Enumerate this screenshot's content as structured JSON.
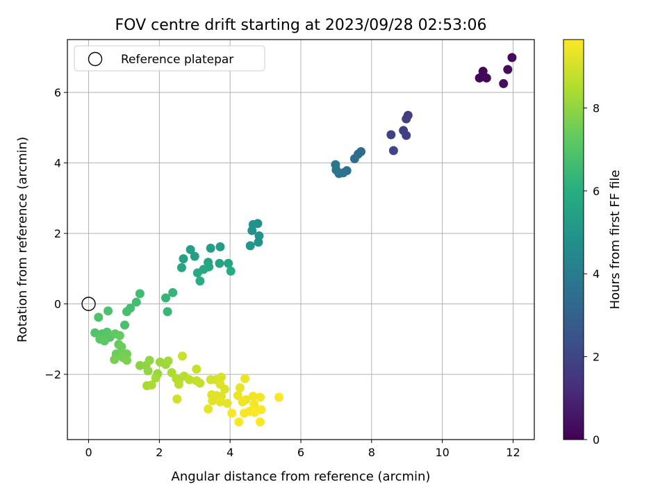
{
  "chart_data": {
    "type": "scatter",
    "title": "FOV centre drift starting at 2023/09/28 02:53:06",
    "xlabel": "Angular distance from reference (arcmin)",
    "ylabel": "Rotation from reference (arcmin)",
    "xlim": [
      -0.6,
      12.6
    ],
    "ylim": [
      -3.85,
      7.5
    ],
    "xticks": [
      0,
      2,
      4,
      6,
      8,
      10,
      12
    ],
    "yticks": [
      -2,
      0,
      2,
      4,
      6
    ],
    "xtick_labels": [
      "0",
      "2",
      "4",
      "6",
      "8",
      "10",
      "12"
    ],
    "ytick_labels": [
      "−2",
      "0",
      "2",
      "4",
      "6"
    ],
    "grid": true,
    "legend": {
      "placement": "top-left",
      "entries": [
        {
          "label": "Reference platepar",
          "marker": "open-circle"
        }
      ]
    },
    "reference_point": {
      "x": 0,
      "y": 0
    },
    "colorbar": {
      "label": "Hours from first FF file",
      "colormap": "viridis",
      "range": [
        0,
        9.65
      ],
      "ticks": [
        0,
        2,
        4,
        6,
        8
      ],
      "tick_labels": [
        "0",
        "2",
        "4",
        "6",
        "8"
      ]
    },
    "points": [
      {
        "x": 11.05,
        "y": 6.41,
        "c": 0.1
      },
      {
        "x": 11.15,
        "y": 6.6,
        "c": 0.15
      },
      {
        "x": 11.25,
        "y": 6.41,
        "c": 0.2
      },
      {
        "x": 11.97,
        "y": 6.99,
        "c": 0.25
      },
      {
        "x": 11.85,
        "y": 6.65,
        "c": 0.3
      },
      {
        "x": 11.73,
        "y": 6.25,
        "c": 0.35
      },
      {
        "x": 9.03,
        "y": 5.35,
        "c": 1.7
      },
      {
        "x": 8.98,
        "y": 5.25,
        "c": 1.75
      },
      {
        "x": 8.9,
        "y": 4.92,
        "c": 1.8
      },
      {
        "x": 8.98,
        "y": 4.78,
        "c": 1.85
      },
      {
        "x": 8.55,
        "y": 4.8,
        "c": 1.9
      },
      {
        "x": 8.62,
        "y": 4.35,
        "c": 2.0
      },
      {
        "x": 7.7,
        "y": 4.32,
        "c": 3.3
      },
      {
        "x": 7.62,
        "y": 4.25,
        "c": 3.35
      },
      {
        "x": 7.52,
        "y": 4.12,
        "c": 3.4
      },
      {
        "x": 7.3,
        "y": 3.78,
        "c": 3.6
      },
      {
        "x": 7.2,
        "y": 3.72,
        "c": 3.65
      },
      {
        "x": 7.08,
        "y": 3.7,
        "c": 3.7
      },
      {
        "x": 7.0,
        "y": 3.8,
        "c": 3.75
      },
      {
        "x": 6.98,
        "y": 3.95,
        "c": 3.8
      },
      {
        "x": 4.78,
        "y": 2.28,
        "c": 4.8
      },
      {
        "x": 4.65,
        "y": 2.25,
        "c": 4.85
      },
      {
        "x": 4.62,
        "y": 2.08,
        "c": 4.9
      },
      {
        "x": 4.82,
        "y": 1.93,
        "c": 4.95
      },
      {
        "x": 4.8,
        "y": 1.75,
        "c": 5.0
      },
      {
        "x": 4.57,
        "y": 1.65,
        "c": 5.05
      },
      {
        "x": 3.72,
        "y": 1.62,
        "c": 5.3
      },
      {
        "x": 3.45,
        "y": 1.58,
        "c": 5.35
      },
      {
        "x": 2.88,
        "y": 1.54,
        "c": 5.4
      },
      {
        "x": 3.0,
        "y": 1.35,
        "c": 5.45
      },
      {
        "x": 2.68,
        "y": 1.28,
        "c": 5.5
      },
      {
        "x": 3.38,
        "y": 1.18,
        "c": 5.55
      },
      {
        "x": 3.7,
        "y": 1.15,
        "c": 5.6
      },
      {
        "x": 3.95,
        "y": 1.15,
        "c": 5.65
      },
      {
        "x": 2.63,
        "y": 1.03,
        "c": 5.7
      },
      {
        "x": 3.4,
        "y": 1.05,
        "c": 5.75
      },
      {
        "x": 3.25,
        "y": 0.98,
        "c": 5.8
      },
      {
        "x": 3.08,
        "y": 0.88,
        "c": 5.85
      },
      {
        "x": 4.02,
        "y": 0.93,
        "c": 5.9
      },
      {
        "x": 3.15,
        "y": 0.65,
        "c": 5.95
      },
      {
        "x": 2.38,
        "y": 0.32,
        "c": 6.3
      },
      {
        "x": 2.18,
        "y": 0.17,
        "c": 6.35
      },
      {
        "x": 2.23,
        "y": -0.22,
        "c": 6.4
      },
      {
        "x": 1.45,
        "y": 0.29,
        "c": 6.6
      },
      {
        "x": 1.35,
        "y": 0.05,
        "c": 6.65
      },
      {
        "x": 1.18,
        "y": -0.12,
        "c": 6.7
      },
      {
        "x": 1.08,
        "y": -0.22,
        "c": 6.75
      },
      {
        "x": 1.02,
        "y": -0.6,
        "c": 6.8
      },
      {
        "x": 0.55,
        "y": -0.2,
        "c": 6.85
      },
      {
        "x": 0.28,
        "y": -0.38,
        "c": 6.9
      },
      {
        "x": 0.18,
        "y": -0.82,
        "c": 6.95
      },
      {
        "x": 0.38,
        "y": -0.85,
        "c": 7.0
      },
      {
        "x": 0.52,
        "y": -0.8,
        "c": 7.05
      },
      {
        "x": 0.6,
        "y": -0.95,
        "c": 7.1
      },
      {
        "x": 0.32,
        "y": -1.0,
        "c": 7.15
      },
      {
        "x": 0.45,
        "y": -1.05,
        "c": 7.2
      },
      {
        "x": 0.75,
        "y": -0.85,
        "c": 7.25
      },
      {
        "x": 0.88,
        "y": -0.9,
        "c": 7.3
      },
      {
        "x": 0.85,
        "y": -1.15,
        "c": 7.35
      },
      {
        "x": 0.93,
        "y": -1.22,
        "c": 7.4
      },
      {
        "x": 0.78,
        "y": -1.42,
        "c": 7.45
      },
      {
        "x": 0.92,
        "y": -1.38,
        "c": 7.5
      },
      {
        "x": 1.08,
        "y": -1.42,
        "c": 7.55
      },
      {
        "x": 0.97,
        "y": -1.52,
        "c": 7.6
      },
      {
        "x": 0.73,
        "y": -1.58,
        "c": 7.65
      },
      {
        "x": 1.08,
        "y": -1.6,
        "c": 7.7
      },
      {
        "x": 1.45,
        "y": -1.75,
        "c": 7.9
      },
      {
        "x": 1.62,
        "y": -1.75,
        "c": 7.95
      },
      {
        "x": 1.72,
        "y": -1.6,
        "c": 8.0
      },
      {
        "x": 1.68,
        "y": -1.9,
        "c": 8.05
      },
      {
        "x": 1.95,
        "y": -1.98,
        "c": 8.1
      },
      {
        "x": 2.02,
        "y": -1.65,
        "c": 8.15
      },
      {
        "x": 2.18,
        "y": -1.72,
        "c": 8.2
      },
      {
        "x": 2.25,
        "y": -1.62,
        "c": 8.25
      },
      {
        "x": 1.9,
        "y": -2.1,
        "c": 8.3
      },
      {
        "x": 1.65,
        "y": -2.32,
        "c": 8.35
      },
      {
        "x": 1.78,
        "y": -2.3,
        "c": 8.4
      },
      {
        "x": 2.35,
        "y": -1.95,
        "c": 8.45
      },
      {
        "x": 2.55,
        "y": -2.2,
        "c": 8.5
      },
      {
        "x": 2.48,
        "y": -2.12,
        "c": 8.55
      },
      {
        "x": 2.7,
        "y": -2.05,
        "c": 8.6
      },
      {
        "x": 2.55,
        "y": -2.28,
        "c": 8.65
      },
      {
        "x": 2.85,
        "y": -2.15,
        "c": 8.7
      },
      {
        "x": 3.05,
        "y": -2.18,
        "c": 8.75
      },
      {
        "x": 3.15,
        "y": -2.25,
        "c": 8.8
      },
      {
        "x": 3.05,
        "y": -1.85,
        "c": 8.85
      },
      {
        "x": 2.65,
        "y": -1.48,
        "c": 8.9
      },
      {
        "x": 2.5,
        "y": -2.7,
        "c": 8.95
      },
      {
        "x": 3.45,
        "y": -2.15,
        "c": 9.0
      },
      {
        "x": 3.6,
        "y": -2.15,
        "c": 9.05
      },
      {
        "x": 3.75,
        "y": -2.08,
        "c": 9.1
      },
      {
        "x": 3.72,
        "y": -2.28,
        "c": 9.12
      },
      {
        "x": 3.85,
        "y": -2.42,
        "c": 9.15
      },
      {
        "x": 3.48,
        "y": -2.58,
        "c": 9.18
      },
      {
        "x": 3.62,
        "y": -2.6,
        "c": 9.2
      },
      {
        "x": 3.75,
        "y": -2.62,
        "c": 9.22
      },
      {
        "x": 3.5,
        "y": -2.75,
        "c": 9.25
      },
      {
        "x": 3.72,
        "y": -2.78,
        "c": 9.28
      },
      {
        "x": 3.92,
        "y": -2.82,
        "c": 9.3
      },
      {
        "x": 3.38,
        "y": -2.98,
        "c": 9.32
      },
      {
        "x": 4.28,
        "y": -2.38,
        "c": 9.35
      },
      {
        "x": 4.42,
        "y": -2.12,
        "c": 9.38
      },
      {
        "x": 4.22,
        "y": -2.6,
        "c": 9.4
      },
      {
        "x": 4.45,
        "y": -2.72,
        "c": 9.42
      },
      {
        "x": 4.35,
        "y": -2.78,
        "c": 9.45
      },
      {
        "x": 4.65,
        "y": -2.62,
        "c": 9.48
      },
      {
        "x": 4.85,
        "y": -2.65,
        "c": 9.5
      },
      {
        "x": 4.68,
        "y": -2.85,
        "c": 9.52
      },
      {
        "x": 4.05,
        "y": -3.1,
        "c": 9.55
      },
      {
        "x": 4.4,
        "y": -3.1,
        "c": 9.57
      },
      {
        "x": 4.55,
        "y": -3.05,
        "c": 9.58
      },
      {
        "x": 4.7,
        "y": -3.08,
        "c": 9.6
      },
      {
        "x": 4.88,
        "y": -3.0,
        "c": 9.61
      },
      {
        "x": 4.25,
        "y": -3.35,
        "c": 9.62
      },
      {
        "x": 4.85,
        "y": -3.35,
        "c": 9.63
      },
      {
        "x": 5.38,
        "y": -2.65,
        "c": 9.65
      }
    ]
  }
}
